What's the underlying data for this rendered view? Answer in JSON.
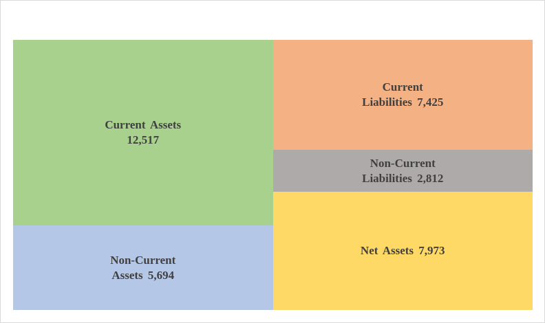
{
  "chart_data": {
    "type": "treemap",
    "title": "",
    "legend": "none",
    "groups": [
      {
        "side": "assets",
        "items": [
          {
            "name": "Current Assets",
            "value": 12517,
            "value_label": "12,517",
            "lines": [
              "Current Assets",
              "12,517"
            ],
            "color": "#a9d18e"
          },
          {
            "name": "Non-Current Assets",
            "value": 5694,
            "value_label": "5,694",
            "lines": [
              "Non-Current",
              "Assets 5,694"
            ],
            "color": "#b4c7e7"
          }
        ]
      },
      {
        "side": "liabilities-and-equity",
        "items": [
          {
            "name": "Current Liabilities",
            "value": 7425,
            "value_label": "7,425",
            "lines": [
              "Current",
              "Liabilities  7,425"
            ],
            "color": "#f4b183"
          },
          {
            "name": "Non-Current Liabilities",
            "value": 2812,
            "value_label": "2,812",
            "lines": [
              "Non-Current",
              "Liabilities  2,812"
            ],
            "color": "#aeaaaa"
          },
          {
            "name": "Net Assets",
            "value": 7973,
            "value_label": "7,973",
            "lines": [
              "Net Assets 7,973"
            ],
            "color": "#ffd966"
          }
        ]
      }
    ]
  }
}
